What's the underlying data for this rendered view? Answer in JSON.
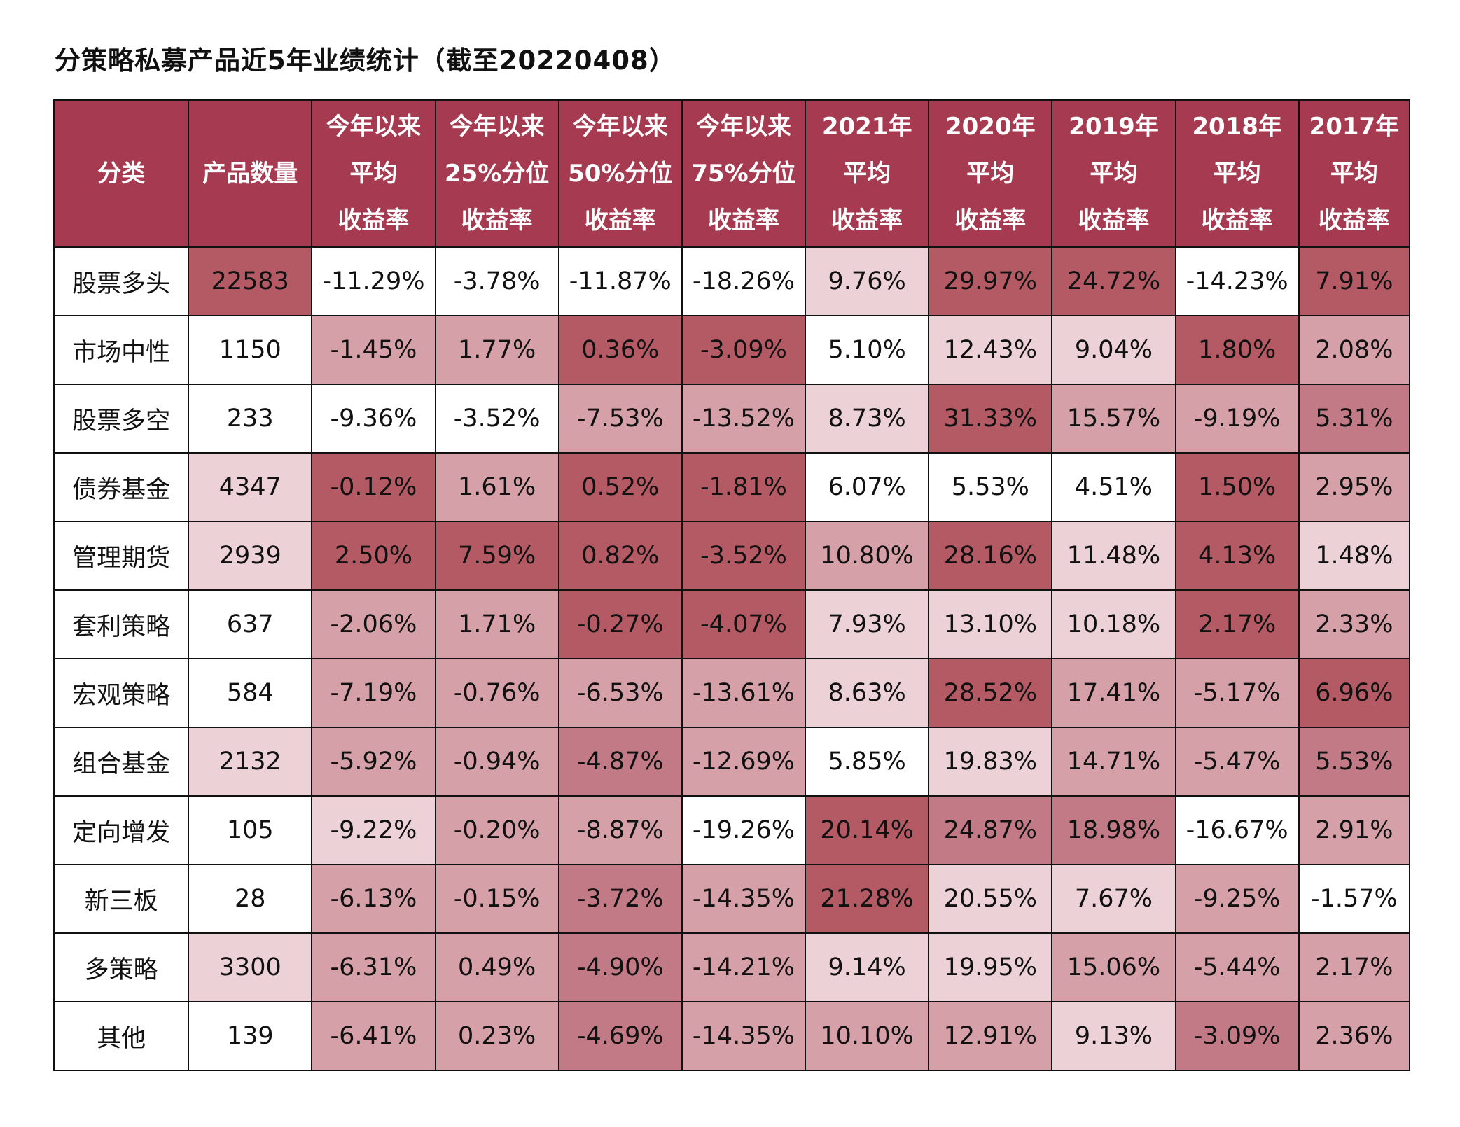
{
  "title": "分策略私募产品近5年业绩统计（截至20220408）",
  "colors": {
    "header": "#a63a50",
    "level0": "#ffffff",
    "level1": "#ecd2d6",
    "level2": "#d6a0a8",
    "level3": "#c27a86",
    "level4": "#b45a64"
  },
  "chart_data": {
    "type": "table",
    "title": "分策略私募产品近5年业绩统计（截至20220408）",
    "columns": [
      {
        "lines": [
          "分类"
        ]
      },
      {
        "lines": [
          "产品数量"
        ]
      },
      {
        "lines": [
          "今年以来",
          "平均",
          "收益率"
        ]
      },
      {
        "lines": [
          "今年以来",
          "25%分位",
          "收益率"
        ]
      },
      {
        "lines": [
          "今年以来",
          "50%分位",
          "收益率"
        ]
      },
      {
        "lines": [
          "今年以来",
          "75%分位",
          "收益率"
        ]
      },
      {
        "lines": [
          "2021年",
          "平均",
          "收益率"
        ]
      },
      {
        "lines": [
          "2020年",
          "平均",
          "收益率"
        ]
      },
      {
        "lines": [
          "2019年",
          "平均",
          "收益率"
        ]
      },
      {
        "lines": [
          "2018年",
          "平均",
          "收益率"
        ]
      },
      {
        "lines": [
          "2017年",
          "平均",
          "收益率"
        ]
      }
    ],
    "rows": [
      {
        "category": "股票多头",
        "count": "22583",
        "values": [
          "-11.29%",
          "-3.78%",
          "-11.87%",
          "-18.26%",
          "9.76%",
          "29.97%",
          "24.72%",
          "-14.23%",
          "7.91%"
        ],
        "levels": [
          4,
          0,
          0,
          0,
          0,
          1,
          4,
          4,
          0,
          4
        ]
      },
      {
        "category": "市场中性",
        "count": "1150",
        "values": [
          "-1.45%",
          "1.77%",
          "0.36%",
          "-3.09%",
          "5.10%",
          "12.43%",
          "9.04%",
          "1.80%",
          "2.08%"
        ],
        "levels": [
          0,
          2,
          2,
          4,
          4,
          0,
          1,
          1,
          4,
          2
        ]
      },
      {
        "category": "股票多空",
        "count": "233",
        "values": [
          "-9.36%",
          "-3.52%",
          "-7.53%",
          "-13.52%",
          "8.73%",
          "31.33%",
          "15.57%",
          "-9.19%",
          "5.31%"
        ],
        "levels": [
          0,
          0,
          0,
          2,
          2,
          1,
          4,
          2,
          2,
          3
        ]
      },
      {
        "category": "债券基金",
        "count": "4347",
        "values": [
          "-0.12%",
          "1.61%",
          "0.52%",
          "-1.81%",
          "6.07%",
          "5.53%",
          "4.51%",
          "1.50%",
          "2.95%"
        ],
        "levels": [
          1,
          4,
          2,
          4,
          4,
          0,
          0,
          0,
          4,
          2
        ]
      },
      {
        "category": "管理期货",
        "count": "2939",
        "values": [
          "2.50%",
          "7.59%",
          "0.82%",
          "-3.52%",
          "10.80%",
          "28.16%",
          "11.48%",
          "4.13%",
          "1.48%"
        ],
        "levels": [
          1,
          4,
          4,
          4,
          4,
          2,
          4,
          1,
          4,
          1
        ]
      },
      {
        "category": "套利策略",
        "count": "637",
        "values": [
          "-2.06%",
          "1.71%",
          "-0.27%",
          "-4.07%",
          "7.93%",
          "13.10%",
          "10.18%",
          "2.17%",
          "2.33%"
        ],
        "levels": [
          0,
          2,
          2,
          4,
          4,
          1,
          1,
          1,
          4,
          2
        ]
      },
      {
        "category": "宏观策略",
        "count": "584",
        "values": [
          "-7.19%",
          "-0.76%",
          "-6.53%",
          "-13.61%",
          "8.63%",
          "28.52%",
          "17.41%",
          "-5.17%",
          "6.96%"
        ],
        "levels": [
          0,
          2,
          2,
          2,
          2,
          1,
          4,
          2,
          2,
          4
        ]
      },
      {
        "category": "组合基金",
        "count": "2132",
        "values": [
          "-5.92%",
          "-0.94%",
          "-4.87%",
          "-12.69%",
          "5.85%",
          "19.83%",
          "14.71%",
          "-5.47%",
          "5.53%"
        ],
        "levels": [
          1,
          2,
          2,
          3,
          2,
          0,
          1,
          2,
          2,
          3
        ]
      },
      {
        "category": "定向增发",
        "count": "105",
        "values": [
          "-9.22%",
          "-0.20%",
          "-8.87%",
          "-19.26%",
          "20.14%",
          "24.87%",
          "18.98%",
          "-16.67%",
          "2.91%"
        ],
        "levels": [
          0,
          1,
          2,
          2,
          0,
          4,
          3,
          3,
          0,
          2
        ]
      },
      {
        "category": "新三板",
        "count": "28",
        "values": [
          "-6.13%",
          "-0.15%",
          "-3.72%",
          "-14.35%",
          "21.28%",
          "20.55%",
          "7.67%",
          "-9.25%",
          "-1.57%"
        ],
        "levels": [
          0,
          2,
          2,
          3,
          2,
          4,
          1,
          1,
          2,
          0
        ]
      },
      {
        "category": "多策略",
        "count": "3300",
        "values": [
          "-6.31%",
          "0.49%",
          "-4.90%",
          "-14.21%",
          "9.14%",
          "19.95%",
          "15.06%",
          "-5.44%",
          "2.17%"
        ],
        "levels": [
          1,
          2,
          2,
          3,
          2,
          1,
          1,
          2,
          2,
          2
        ]
      },
      {
        "category": "其他",
        "count": "139",
        "values": [
          "-6.41%",
          "0.23%",
          "-4.69%",
          "-14.35%",
          "10.10%",
          "12.91%",
          "9.13%",
          "-3.09%",
          "2.36%"
        ],
        "levels": [
          0,
          2,
          2,
          3,
          2,
          2,
          2,
          1,
          3,
          2
        ]
      }
    ]
  }
}
